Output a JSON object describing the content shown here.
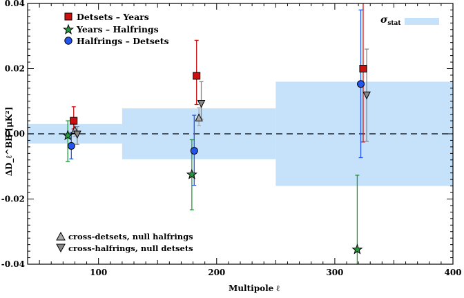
{
  "chart_data": {
    "type": "scatter",
    "xlabel": "Multipole ℓ",
    "ylabel": "ΔD_ℓ^BB [μK²]",
    "xlim": [
      40,
      400
    ],
    "ylim": [
      -0.04,
      0.04
    ],
    "x_ticks": [
      100,
      200,
      300,
      400
    ],
    "y_ticks": [
      -0.04,
      -0.02,
      0.0,
      0.02,
      0.04
    ],
    "x_tick_labels": [
      "100",
      "200",
      "300",
      "400"
    ],
    "y_tick_labels": [
      "-0.04",
      "-0.02",
      "0.00",
      "0.02",
      "0.04"
    ],
    "zero_line": 0.0,
    "sigma_stat": {
      "label": "σ",
      "label_sub": "stat",
      "color": "#c6e2fa",
      "bands": [
        {
          "x0": 40,
          "x1": 120,
          "half_width": 0.003
        },
        {
          "x0": 120,
          "x1": 250,
          "half_width": 0.0078
        },
        {
          "x0": 250,
          "x1": 400,
          "half_width": 0.016
        }
      ]
    },
    "series": [
      {
        "name": "Detsets − Years",
        "marker": "square",
        "color": "#cc1111",
        "points": [
          {
            "x": 79,
            "y": 0.004,
            "err_low": 0.0015,
            "err_high": 0.0083
          },
          {
            "x": 183,
            "y": 0.0178,
            "err_low": 0.009,
            "err_high": 0.0287
          },
          {
            "x": 324,
            "y": 0.02,
            "err_low": -0.0025,
            "err_high": 0.043
          }
        ]
      },
      {
        "name": "Years − Halfrings",
        "marker": "star",
        "color": "#22993a",
        "points": [
          {
            "x": 74,
            "y": -0.0005,
            "err_low": -0.0085,
            "err_high": 0.004
          },
          {
            "x": 179,
            "y": -0.0125,
            "err_low": -0.0233,
            "err_high": -0.0018
          },
          {
            "x": 319,
            "y": -0.0355,
            "err_low": -0.042,
            "err_high": -0.0127
          }
        ]
      },
      {
        "name": "Halfrings − Detsets",
        "marker": "circle",
        "color": "#2255ee",
        "points": [
          {
            "x": 77,
            "y": -0.0037,
            "err_low": -0.0077,
            "err_high": 0.0005
          },
          {
            "x": 181,
            "y": -0.0052,
            "err_low": -0.0158,
            "err_high": 0.0057
          },
          {
            "x": 322,
            "y": 0.0153,
            "err_low": -0.0073,
            "err_high": 0.038
          }
        ]
      },
      {
        "name": "cross-detsets, null halfrings",
        "marker": "triangle-up",
        "color": "#aaaaaa",
        "points": [
          {
            "x": 80,
            "y": 0.0012,
            "err_low": -0.0008,
            "err_high": 0.0035
          },
          {
            "x": 185,
            "y": 0.005,
            "err_low": 0.0025,
            "err_high": 0.008
          }
        ]
      },
      {
        "name": "cross-halfrings, null detsets",
        "marker": "triangle-down",
        "color": "#888888",
        "points": [
          {
            "x": 82,
            "y": -0.0002,
            "err_low": -0.0032,
            "err_high": 0.0022
          },
          {
            "x": 187,
            "y": 0.0092,
            "err_low": 0.0045,
            "err_high": 0.016
          },
          {
            "x": 327,
            "y": 0.0118,
            "err_low": -0.0023,
            "err_high": 0.026
          }
        ]
      }
    ],
    "legend": {
      "placement": "top-left",
      "entries": [
        "Detsets  –  Years",
        "Years  –  Halfrings",
        "Halfrings  –  Detsets"
      ]
    },
    "notes": {
      "placement": "bottom-left",
      "entries": [
        "cross-detsets, null halfrings",
        "cross-halfrings, null detsets"
      ]
    }
  }
}
